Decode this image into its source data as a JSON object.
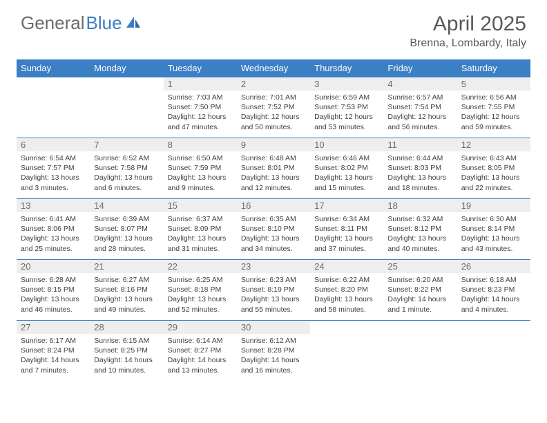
{
  "logo": {
    "text_gray": "General",
    "text_blue": "Blue"
  },
  "title": "April 2025",
  "location": "Brenna, Lombardy, Italy",
  "colors": {
    "header_bg": "#3b7fc4",
    "header_text": "#ffffff",
    "daynum_bg": "#eeeeee",
    "daynum_text": "#6b6b6b",
    "body_text": "#404040",
    "title_text": "#595959",
    "rule": "#3b7fc4"
  },
  "weekdays": [
    "Sunday",
    "Monday",
    "Tuesday",
    "Wednesday",
    "Thursday",
    "Friday",
    "Saturday"
  ],
  "weeks": [
    [
      null,
      null,
      {
        "n": "1",
        "sr": "7:03 AM",
        "ss": "7:50 PM",
        "dl": "12 hours and 47 minutes."
      },
      {
        "n": "2",
        "sr": "7:01 AM",
        "ss": "7:52 PM",
        "dl": "12 hours and 50 minutes."
      },
      {
        "n": "3",
        "sr": "6:59 AM",
        "ss": "7:53 PM",
        "dl": "12 hours and 53 minutes."
      },
      {
        "n": "4",
        "sr": "6:57 AM",
        "ss": "7:54 PM",
        "dl": "12 hours and 56 minutes."
      },
      {
        "n": "5",
        "sr": "6:56 AM",
        "ss": "7:55 PM",
        "dl": "12 hours and 59 minutes."
      }
    ],
    [
      {
        "n": "6",
        "sr": "6:54 AM",
        "ss": "7:57 PM",
        "dl": "13 hours and 3 minutes."
      },
      {
        "n": "7",
        "sr": "6:52 AM",
        "ss": "7:58 PM",
        "dl": "13 hours and 6 minutes."
      },
      {
        "n": "8",
        "sr": "6:50 AM",
        "ss": "7:59 PM",
        "dl": "13 hours and 9 minutes."
      },
      {
        "n": "9",
        "sr": "6:48 AM",
        "ss": "8:01 PM",
        "dl": "13 hours and 12 minutes."
      },
      {
        "n": "10",
        "sr": "6:46 AM",
        "ss": "8:02 PM",
        "dl": "13 hours and 15 minutes."
      },
      {
        "n": "11",
        "sr": "6:44 AM",
        "ss": "8:03 PM",
        "dl": "13 hours and 18 minutes."
      },
      {
        "n": "12",
        "sr": "6:43 AM",
        "ss": "8:05 PM",
        "dl": "13 hours and 22 minutes."
      }
    ],
    [
      {
        "n": "13",
        "sr": "6:41 AM",
        "ss": "8:06 PM",
        "dl": "13 hours and 25 minutes."
      },
      {
        "n": "14",
        "sr": "6:39 AM",
        "ss": "8:07 PM",
        "dl": "13 hours and 28 minutes."
      },
      {
        "n": "15",
        "sr": "6:37 AM",
        "ss": "8:09 PM",
        "dl": "13 hours and 31 minutes."
      },
      {
        "n": "16",
        "sr": "6:35 AM",
        "ss": "8:10 PM",
        "dl": "13 hours and 34 minutes."
      },
      {
        "n": "17",
        "sr": "6:34 AM",
        "ss": "8:11 PM",
        "dl": "13 hours and 37 minutes."
      },
      {
        "n": "18",
        "sr": "6:32 AM",
        "ss": "8:12 PM",
        "dl": "13 hours and 40 minutes."
      },
      {
        "n": "19",
        "sr": "6:30 AM",
        "ss": "8:14 PM",
        "dl": "13 hours and 43 minutes."
      }
    ],
    [
      {
        "n": "20",
        "sr": "6:28 AM",
        "ss": "8:15 PM",
        "dl": "13 hours and 46 minutes."
      },
      {
        "n": "21",
        "sr": "6:27 AM",
        "ss": "8:16 PM",
        "dl": "13 hours and 49 minutes."
      },
      {
        "n": "22",
        "sr": "6:25 AM",
        "ss": "8:18 PM",
        "dl": "13 hours and 52 minutes."
      },
      {
        "n": "23",
        "sr": "6:23 AM",
        "ss": "8:19 PM",
        "dl": "13 hours and 55 minutes."
      },
      {
        "n": "24",
        "sr": "6:22 AM",
        "ss": "8:20 PM",
        "dl": "13 hours and 58 minutes."
      },
      {
        "n": "25",
        "sr": "6:20 AM",
        "ss": "8:22 PM",
        "dl": "14 hours and 1 minute."
      },
      {
        "n": "26",
        "sr": "6:18 AM",
        "ss": "8:23 PM",
        "dl": "14 hours and 4 minutes."
      }
    ],
    [
      {
        "n": "27",
        "sr": "6:17 AM",
        "ss": "8:24 PM",
        "dl": "14 hours and 7 minutes."
      },
      {
        "n": "28",
        "sr": "6:15 AM",
        "ss": "8:25 PM",
        "dl": "14 hours and 10 minutes."
      },
      {
        "n": "29",
        "sr": "6:14 AM",
        "ss": "8:27 PM",
        "dl": "14 hours and 13 minutes."
      },
      {
        "n": "30",
        "sr": "6:12 AM",
        "ss": "8:28 PM",
        "dl": "14 hours and 16 minutes."
      },
      null,
      null,
      null
    ]
  ],
  "labels": {
    "sunrise": "Sunrise:",
    "sunset": "Sunset:",
    "daylight": "Daylight:"
  }
}
